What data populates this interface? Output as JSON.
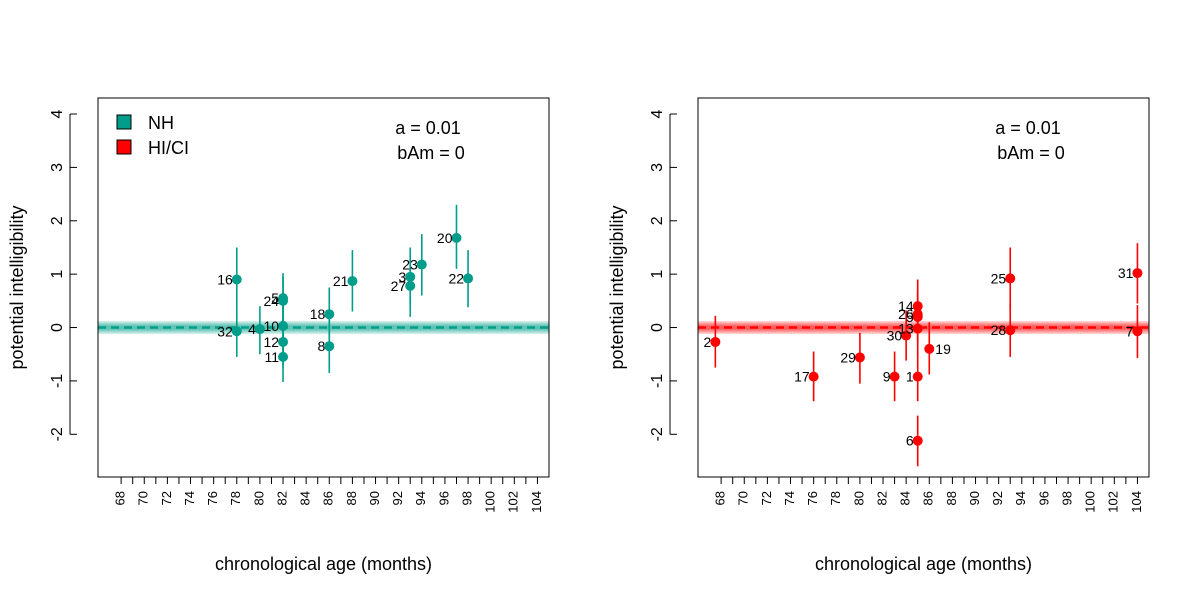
{
  "chart_data": [
    {
      "type": "scatter",
      "group": "NH",
      "color": "#009E8A",
      "xlabel": "chronological age (months)",
      "ylabel": "potential intelligibility",
      "xlim": [
        66,
        105
      ],
      "ylim": [
        -2.8,
        4.3
      ],
      "xticks": [
        68,
        69,
        70,
        71,
        72,
        73,
        74,
        75,
        76,
        77,
        78,
        79,
        80,
        81,
        82,
        83,
        84,
        85,
        86,
        87,
        88,
        89,
        90,
        91,
        92,
        93,
        94,
        95,
        96,
        97,
        98,
        99,
        100,
        101,
        102,
        103,
        104
      ],
      "xtick_labels": [
        "68",
        "70",
        "72",
        "74",
        "76",
        "78",
        "80",
        "82",
        "84",
        "86",
        "88",
        "90",
        "92",
        "94",
        "96",
        "98",
        "100",
        "102",
        "104"
      ],
      "yticks": [
        -2,
        -1,
        0,
        1,
        2,
        3,
        4
      ],
      "ytick_labels": [
        "-2",
        "-1",
        "0",
        "1",
        "2",
        "3",
        "4"
      ],
      "annotation": [
        "a = 0.01",
        "bAm = 0"
      ],
      "legend": [
        {
          "label": "NH",
          "color": "#009E8A"
        },
        {
          "label": "HI/CI",
          "color": "#FF0000"
        }
      ],
      "band": {
        "center": 0,
        "half_width": 0.12
      },
      "points": [
        {
          "id": "16",
          "x": 78,
          "y": 0.9,
          "lo": 0.28,
          "hi": 1.5,
          "label_side": "left"
        },
        {
          "id": "32",
          "x": 78,
          "y": -0.07,
          "lo": -0.55,
          "hi": 0.3,
          "label_side": "left"
        },
        {
          "id": "4",
          "x": 80,
          "y": -0.03,
          "lo": -0.5,
          "hi": 0.4,
          "label_side": "left"
        },
        {
          "id": "5",
          "x": 82,
          "y": 0.55,
          "lo": 0.05,
          "hi": 1.02,
          "label_side": "left"
        },
        {
          "id": "24",
          "x": 82,
          "y": 0.5,
          "lo": 0.0,
          "hi": 0.95,
          "label_side": "left"
        },
        {
          "id": "10",
          "x": 82,
          "y": 0.03,
          "lo": -0.45,
          "hi": 0.5,
          "label_side": "left"
        },
        {
          "id": "12",
          "x": 82,
          "y": -0.27,
          "lo": -0.75,
          "hi": 0.2,
          "label_side": "left"
        },
        {
          "id": "11",
          "x": 82,
          "y": -0.55,
          "lo": -1.02,
          "hi": -0.05,
          "label_side": "left"
        },
        {
          "id": "18",
          "x": 86,
          "y": 0.25,
          "lo": -0.25,
          "hi": 0.75,
          "label_side": "left"
        },
        {
          "id": "8",
          "x": 86,
          "y": -0.35,
          "lo": -0.85,
          "hi": 0.15,
          "label_side": "left"
        },
        {
          "id": "21",
          "x": 88,
          "y": 0.87,
          "lo": 0.3,
          "hi": 1.45,
          "label_side": "left"
        },
        {
          "id": "3",
          "x": 93,
          "y": 0.95,
          "lo": 0.42,
          "hi": 1.5,
          "label_side": "left"
        },
        {
          "id": "27",
          "x": 93,
          "y": 0.78,
          "lo": 0.2,
          "hi": 1.3,
          "label_side": "left"
        },
        {
          "id": "23",
          "x": 94,
          "y": 1.18,
          "lo": 0.6,
          "hi": 1.75,
          "label_side": "left"
        },
        {
          "id": "20",
          "x": 97,
          "y": 1.68,
          "lo": 1.1,
          "hi": 2.3,
          "label_side": "left"
        },
        {
          "id": "22",
          "x": 98,
          "y": 0.92,
          "lo": 0.38,
          "hi": 1.45,
          "label_side": "left"
        }
      ]
    },
    {
      "type": "scatter",
      "group": "HI/CI",
      "color": "#FF0000",
      "xlabel": "chronological age (months)",
      "ylabel": "potential intelligibility",
      "xlim": [
        66,
        105
      ],
      "ylim": [
        -2.8,
        4.3
      ],
      "xticks": [
        68,
        69,
        70,
        71,
        72,
        73,
        74,
        75,
        76,
        77,
        78,
        79,
        80,
        81,
        82,
        83,
        84,
        85,
        86,
        87,
        88,
        89,
        90,
        91,
        92,
        93,
        94,
        95,
        96,
        97,
        98,
        99,
        100,
        101,
        102,
        103,
        104
      ],
      "xtick_labels": [
        "68",
        "70",
        "72",
        "74",
        "76",
        "78",
        "80",
        "82",
        "84",
        "86",
        "88",
        "90",
        "92",
        "94",
        "96",
        "98",
        "100",
        "102",
        "104"
      ],
      "yticks": [
        -2,
        -1,
        0,
        1,
        2,
        3,
        4
      ],
      "ytick_labels": [
        "-2",
        "-1",
        "0",
        "1",
        "2",
        "3",
        "4"
      ],
      "annotation": [
        "a = 0.01",
        "bAm = 0"
      ],
      "band": {
        "center": 0,
        "half_width": 0.12
      },
      "points": [
        {
          "id": "2",
          "x": 67.5,
          "y": -0.27,
          "lo": -0.75,
          "hi": 0.22,
          "label_side": "left"
        },
        {
          "id": "17",
          "x": 76,
          "y": -0.92,
          "lo": -1.38,
          "hi": -0.45,
          "label_side": "left"
        },
        {
          "id": "29",
          "x": 80,
          "y": -0.56,
          "lo": -1.05,
          "hi": -0.1,
          "label_side": "left"
        },
        {
          "id": "9",
          "x": 83,
          "y": -0.92,
          "lo": -1.38,
          "hi": -0.45,
          "label_side": "left"
        },
        {
          "id": "30",
          "x": 84,
          "y": -0.15,
          "lo": -0.62,
          "hi": 0.32,
          "label_side": "left"
        },
        {
          "id": "14",
          "x": 85,
          "y": 0.4,
          "lo": -0.1,
          "hi": 0.9,
          "label_side": "left"
        },
        {
          "id": "26",
          "x": 85,
          "y": 0.25,
          "lo": -0.25,
          "hi": 0.72,
          "label_side": "left"
        },
        {
          "id": "5",
          "x": 85,
          "y": 0.2,
          "lo": -0.28,
          "hi": 0.68,
          "label_side": "left"
        },
        {
          "id": "13",
          "x": 85,
          "y": -0.02,
          "lo": -0.5,
          "hi": 0.45,
          "label_side": "left"
        },
        {
          "id": "1",
          "x": 85,
          "y": -0.92,
          "lo": -1.38,
          "hi": -0.45,
          "label_side": "left"
        },
        {
          "id": "6",
          "x": 85,
          "y": -2.12,
          "lo": -2.6,
          "hi": -1.65,
          "label_side": "left"
        },
        {
          "id": "19",
          "x": 86,
          "y": -0.4,
          "lo": -0.88,
          "hi": 0.1,
          "label_side": "right"
        },
        {
          "id": "25",
          "x": 93,
          "y": 0.92,
          "lo": 0.35,
          "hi": 1.5,
          "label_side": "left"
        },
        {
          "id": "28",
          "x": 93,
          "y": -0.05,
          "lo": -0.55,
          "hi": 0.45,
          "label_side": "left"
        },
        {
          "id": "31",
          "x": 104,
          "y": 1.02,
          "lo": 0.45,
          "hi": 1.58,
          "label_side": "left"
        },
        {
          "id": "7",
          "x": 104,
          "y": -0.07,
          "lo": -0.57,
          "hi": 0.42,
          "label_side": "left"
        }
      ]
    }
  ]
}
